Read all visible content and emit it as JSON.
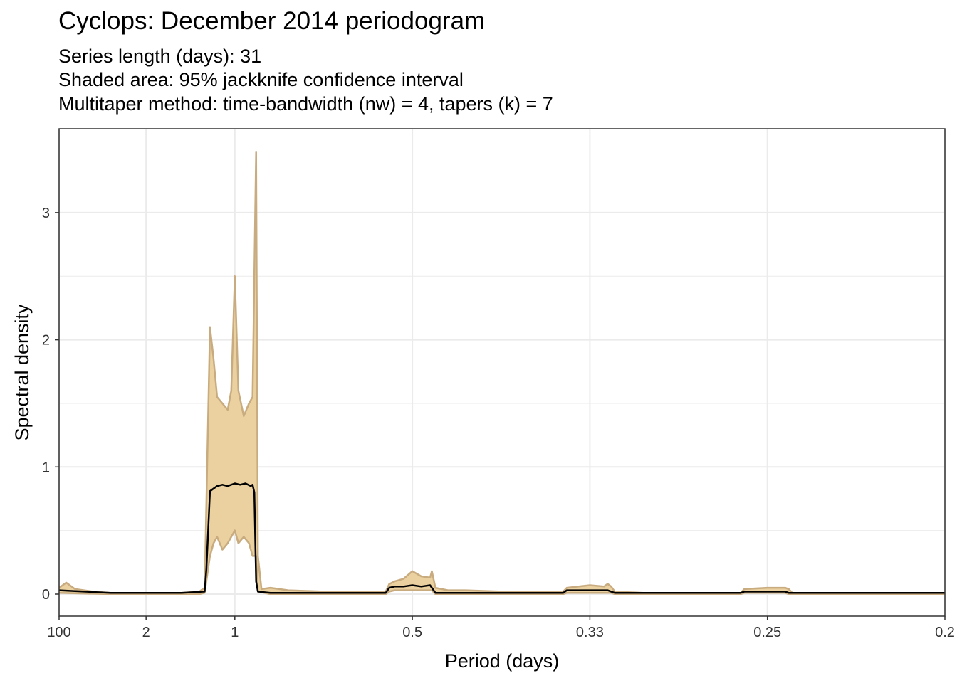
{
  "chart_data": {
    "type": "area",
    "title": "Cyclops: December 2014 periodogram",
    "subtitle_lines": [
      "Series length (days): 31",
      "Shaded area: 95% jackknife confidence interval",
      "Multitaper method: time-bandwidth (nw) = 4, tapers (k) = 7"
    ],
    "xlabel": "Period (days)",
    "ylabel": "Spectral density",
    "x_axis_unit": "frequency (cycles/day)",
    "xlim": [
      0.01,
      5
    ],
    "ylim": [
      -0.16,
      3.66
    ],
    "x_ticks": [
      {
        "value": 0.01,
        "label": "100"
      },
      {
        "value": 0.5,
        "label": "2"
      },
      {
        "value": 1,
        "label": "1"
      },
      {
        "value": 2,
        "label": "0.5"
      },
      {
        "value": 3,
        "label": "0.33"
      },
      {
        "value": 4,
        "label": "0.25"
      },
      {
        "value": 5,
        "label": "0.2"
      }
    ],
    "y_ticks": [
      0,
      1,
      2,
      3
    ],
    "grid": true,
    "colors": {
      "ci_fill": "#ebd19f",
      "ci_line": "#c8ab7f",
      "spectrum": "#000000",
      "grid": "#ebebeb",
      "panel_border": "#333333"
    },
    "series": [
      {
        "role": "spectrum",
        "x": [
          0.01,
          0.15,
          0.3,
          0.5,
          0.7,
          0.83,
          0.84,
          0.86,
          0.88,
          0.9,
          0.93,
          0.96,
          1.0,
          1.03,
          1.06,
          1.09,
          1.1,
          1.11,
          1.12,
          1.13,
          1.2,
          1.5,
          1.85,
          1.87,
          1.9,
          1.95,
          2.0,
          2.05,
          2.1,
          2.11,
          2.13,
          2.2,
          2.5,
          2.85,
          2.87,
          3.0,
          3.1,
          3.12,
          3.14,
          3.3,
          3.85,
          3.87,
          4.0,
          4.1,
          4.12,
          4.14,
          4.5,
          5.0
        ],
        "y": [
          0.03,
          0.02,
          0.01,
          0.01,
          0.01,
          0.02,
          0.2,
          0.81,
          0.83,
          0.85,
          0.86,
          0.85,
          0.87,
          0.86,
          0.87,
          0.85,
          0.86,
          0.8,
          0.1,
          0.02,
          0.01,
          0.01,
          0.01,
          0.05,
          0.06,
          0.06,
          0.07,
          0.06,
          0.07,
          0.05,
          0.01,
          0.01,
          0.01,
          0.01,
          0.03,
          0.03,
          0.03,
          0.02,
          0.01,
          0.01,
          0.01,
          0.02,
          0.02,
          0.02,
          0.01,
          0.01,
          0.01,
          0.01
        ]
      },
      {
        "role": "ci_upper",
        "x": [
          0.01,
          0.05,
          0.1,
          0.15,
          0.2,
          0.3,
          0.5,
          0.7,
          0.8,
          0.83,
          0.86,
          0.88,
          0.9,
          0.93,
          0.96,
          0.98,
          1.0,
          1.02,
          1.05,
          1.08,
          1.1,
          1.12,
          1.13,
          1.15,
          1.2,
          1.3,
          1.5,
          1.85,
          1.87,
          1.9,
          1.95,
          2.0,
          2.05,
          2.1,
          2.11,
          2.13,
          2.2,
          2.3,
          2.5,
          2.85,
          2.87,
          3.0,
          3.08,
          3.1,
          3.12,
          3.14,
          3.3,
          3.85,
          3.87,
          4.0,
          4.1,
          4.12,
          4.14,
          4.5,
          5.0
        ],
        "y": [
          0.05,
          0.09,
          0.04,
          0.03,
          0.02,
          0.01,
          0.01,
          0.01,
          0.02,
          0.05,
          2.1,
          1.85,
          1.55,
          1.5,
          1.45,
          1.6,
          2.5,
          1.6,
          1.4,
          1.5,
          1.55,
          3.48,
          0.3,
          0.04,
          0.05,
          0.03,
          0.02,
          0.02,
          0.08,
          0.1,
          0.12,
          0.18,
          0.14,
          0.13,
          0.18,
          0.05,
          0.03,
          0.03,
          0.02,
          0.02,
          0.05,
          0.07,
          0.06,
          0.08,
          0.06,
          0.02,
          0.01,
          0.01,
          0.04,
          0.05,
          0.05,
          0.04,
          0.01,
          0.01,
          0.01
        ]
      },
      {
        "role": "ci_lower",
        "x": [
          0.01,
          0.3,
          0.8,
          0.83,
          0.86,
          0.88,
          0.9,
          0.93,
          0.96,
          0.98,
          1.0,
          1.02,
          1.05,
          1.08,
          1.1,
          1.12,
          1.13,
          1.2,
          1.85,
          1.87,
          1.9,
          2.0,
          2.1,
          2.11,
          2.13,
          2.85,
          2.87,
          3.1,
          3.12,
          3.14,
          3.85,
          3.87,
          4.1,
          4.12,
          4.14,
          5.0
        ],
        "y": [
          0.01,
          0.0,
          0.0,
          0.01,
          0.3,
          0.4,
          0.45,
          0.35,
          0.4,
          0.45,
          0.5,
          0.4,
          0.45,
          0.4,
          0.3,
          0.3,
          0.02,
          0.0,
          0.0,
          0.02,
          0.03,
          0.03,
          0.03,
          0.03,
          0.0,
          0.0,
          0.01,
          0.01,
          0.01,
          0.0,
          0.0,
          0.01,
          0.01,
          0.0,
          0.0,
          0.0
        ]
      }
    ]
  }
}
